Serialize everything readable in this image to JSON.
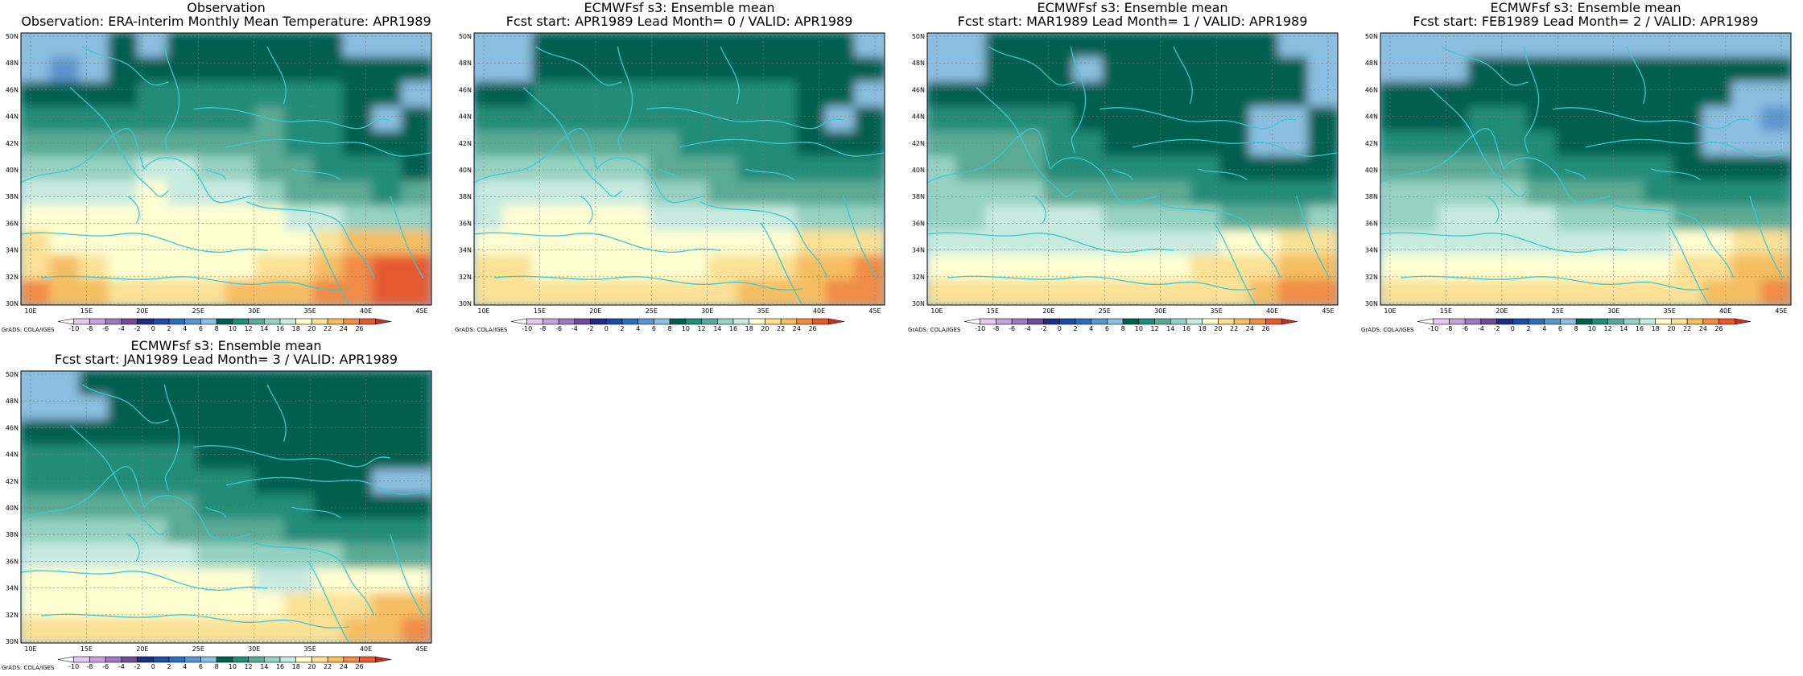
{
  "panels": [
    {
      "id": "obs",
      "title1": "Observation",
      "title2": "Observation: ERA-interim Monthly Mean Temperature: APR1989",
      "field": [
        [
          6,
          6,
          7,
          8,
          7,
          8,
          8,
          9,
          9,
          8,
          8,
          7,
          7,
          6
        ],
        [
          6,
          5,
          7,
          8,
          8,
          9,
          9,
          9,
          9,
          9,
          9,
          9,
          8,
          8
        ],
        [
          8,
          8,
          9,
          9,
          10,
          10,
          10,
          10,
          10,
          10,
          10,
          9,
          8,
          7
        ],
        [
          10,
          11,
          10,
          10,
          11,
          11,
          11,
          11,
          12,
          11,
          10,
          9,
          7,
          8
        ],
        [
          12,
          12,
          12,
          13,
          13,
          13,
          12,
          12,
          12,
          11,
          11,
          9,
          9,
          8
        ],
        [
          14,
          14,
          14,
          15,
          16,
          17,
          15,
          15,
          13,
          12,
          11,
          10,
          10,
          9
        ],
        [
          16,
          16,
          16,
          17,
          18,
          17,
          16,
          16,
          14,
          13,
          12,
          12,
          11,
          12
        ],
        [
          18,
          18,
          18,
          18,
          18,
          18,
          18,
          18,
          18,
          17,
          16,
          15,
          14,
          14
        ],
        [
          20,
          19,
          19,
          18,
          18,
          18,
          18,
          18,
          18,
          19,
          20,
          22,
          22,
          23
        ],
        [
          21,
          22,
          20,
          19,
          18,
          18,
          18,
          19,
          20,
          21,
          22,
          24,
          26,
          27
        ],
        [
          24,
          23,
          22,
          21,
          21,
          20,
          21,
          22,
          22,
          23,
          24,
          25,
          27,
          28
        ]
      ]
    },
    {
      "id": "lead0",
      "title1": "ECMWFsf s3: Ensemble mean",
      "title2": "Fcst start: APR1989  Lead Month= 0 / VALID: APR1989",
      "field": [
        [
          7,
          7,
          8,
          8,
          8,
          9,
          9,
          9,
          9,
          9,
          8,
          8,
          8,
          7
        ],
        [
          6,
          7,
          8,
          8,
          9,
          9,
          9,
          9,
          9,
          9,
          9,
          9,
          8,
          8
        ],
        [
          9,
          9,
          10,
          10,
          10,
          10,
          10,
          10,
          10,
          10,
          10,
          9,
          8,
          7
        ],
        [
          10,
          10,
          11,
          11,
          11,
          11,
          10,
          10,
          10,
          10,
          10,
          8,
          7,
          8
        ],
        [
          12,
          12,
          12,
          12,
          12,
          13,
          12,
          11,
          10,
          10,
          10,
          9,
          9,
          9
        ],
        [
          14,
          14,
          14,
          14,
          14,
          14,
          13,
          13,
          12,
          11,
          11,
          10,
          10,
          10
        ],
        [
          16,
          16,
          16,
          16,
          16,
          16,
          15,
          14,
          13,
          13,
          12,
          12,
          12,
          12
        ],
        [
          17,
          18,
          18,
          18,
          18,
          18,
          17,
          16,
          16,
          16,
          16,
          15,
          14,
          15
        ],
        [
          19,
          19,
          18,
          18,
          18,
          18,
          18,
          18,
          18,
          18,
          19,
          20,
          21,
          21
        ],
        [
          20,
          20,
          19,
          19,
          19,
          19,
          19,
          19,
          20,
          21,
          21,
          22,
          23,
          24
        ],
        [
          21,
          21,
          21,
          21,
          21,
          21,
          21,
          21,
          21,
          22,
          22,
          23,
          24,
          25
        ]
      ]
    },
    {
      "id": "lead1",
      "title1": "ECMWFsf s3: Ensemble mean",
      "title2": "Fcst start: MAR1989  Lead Month= 1 / VALID: APR1989",
      "field": [
        [
          7,
          7,
          8,
          8,
          8,
          8,
          8,
          8,
          8,
          8,
          8,
          8,
          7,
          6
        ],
        [
          6,
          7,
          8,
          9,
          8,
          7,
          8,
          8,
          8,
          8,
          8,
          8,
          8,
          7
        ],
        [
          9,
          9,
          9,
          9,
          9,
          8,
          8,
          8,
          8,
          8,
          8,
          9,
          8,
          7
        ],
        [
          10,
          10,
          11,
          11,
          10,
          9,
          8,
          8,
          8,
          8,
          8,
          7,
          6,
          8
        ],
        [
          12,
          12,
          12,
          12,
          11,
          10,
          9,
          9,
          9,
          9,
          8,
          7,
          7,
          8
        ],
        [
          14,
          13,
          13,
          12,
          11,
          11,
          10,
          10,
          10,
          10,
          9,
          9,
          9,
          9
        ],
        [
          14,
          14,
          14,
          14,
          13,
          12,
          12,
          12,
          12,
          11,
          10,
          10,
          11,
          11
        ],
        [
          15,
          15,
          16,
          16,
          16,
          16,
          15,
          14,
          14,
          14,
          13,
          13,
          13,
          14
        ],
        [
          17,
          17,
          17,
          17,
          17,
          17,
          17,
          17,
          17,
          17,
          18,
          19,
          20,
          20
        ],
        [
          19,
          19,
          18,
          18,
          18,
          18,
          18,
          18,
          19,
          20,
          20,
          21,
          22,
          23
        ],
        [
          20,
          20,
          20,
          20,
          20,
          20,
          20,
          20,
          20,
          21,
          21,
          22,
          24,
          25
        ]
      ]
    },
    {
      "id": "lead2",
      "title1": "ECMWFsf s3: Ensemble mean",
      "title2": "Fcst start: FEB1989  Lead Month= 2 / VALID: APR1989",
      "field": [
        [
          7,
          6,
          7,
          7,
          7,
          7,
          7,
          7,
          7,
          7,
          7,
          7,
          7,
          7
        ],
        [
          6,
          6,
          7,
          8,
          8,
          8,
          8,
          8,
          8,
          8,
          8,
          8,
          8,
          8
        ],
        [
          8,
          8,
          8,
          8,
          8,
          8,
          8,
          8,
          8,
          8,
          8,
          8,
          7,
          6
        ],
        [
          9,
          9,
          9,
          10,
          10,
          9,
          8,
          8,
          8,
          8,
          8,
          7,
          6,
          5
        ],
        [
          11,
          11,
          11,
          11,
          11,
          10,
          9,
          9,
          9,
          9,
          8,
          7,
          6,
          6
        ],
        [
          12,
          12,
          12,
          12,
          12,
          11,
          10,
          10,
          10,
          10,
          9,
          8,
          8,
          8
        ],
        [
          14,
          14,
          14,
          14,
          14,
          13,
          12,
          12,
          12,
          11,
          10,
          10,
          10,
          10
        ],
        [
          15,
          15,
          16,
          16,
          16,
          16,
          15,
          14,
          14,
          14,
          13,
          13,
          13,
          13
        ],
        [
          17,
          17,
          17,
          17,
          17,
          17,
          17,
          17,
          17,
          17,
          18,
          19,
          20,
          20
        ],
        [
          18,
          18,
          18,
          18,
          18,
          18,
          18,
          18,
          19,
          19,
          20,
          21,
          22,
          23
        ],
        [
          20,
          20,
          20,
          20,
          20,
          20,
          20,
          20,
          20,
          21,
          21,
          22,
          23,
          25
        ]
      ]
    },
    {
      "id": "lead3",
      "title1": "ECMWFsf s3: Ensemble mean",
      "title2": "Fcst start: JAN1989  Lead Month= 3 / VALID: APR1989",
      "field": [
        [
          7,
          7,
          8,
          8,
          8,
          8,
          8,
          8,
          8,
          8,
          8,
          8,
          8,
          8
        ],
        [
          6,
          6,
          7,
          8,
          8,
          9,
          8,
          8,
          8,
          8,
          8,
          8,
          8,
          8
        ],
        [
          8,
          8,
          8,
          9,
          9,
          9,
          9,
          8,
          8,
          8,
          8,
          8,
          8,
          8
        ],
        [
          10,
          10,
          10,
          10,
          10,
          10,
          9,
          9,
          8,
          8,
          8,
          8,
          8,
          8
        ],
        [
          11,
          11,
          11,
          11,
          11,
          11,
          10,
          10,
          9,
          9,
          9,
          8,
          7,
          6
        ],
        [
          12,
          12,
          12,
          12,
          12,
          12,
          11,
          11,
          10,
          10,
          9,
          8,
          8,
          8
        ],
        [
          14,
          14,
          14,
          14,
          14,
          13,
          13,
          12,
          12,
          11,
          11,
          10,
          10,
          10
        ],
        [
          16,
          16,
          16,
          16,
          16,
          16,
          15,
          15,
          14,
          14,
          14,
          13,
          13,
          13
        ],
        [
          18,
          18,
          18,
          18,
          18,
          18,
          18,
          18,
          17,
          17,
          18,
          18,
          19,
          19
        ],
        [
          19,
          19,
          19,
          19,
          19,
          19,
          19,
          19,
          19,
          20,
          20,
          21,
          22,
          23
        ],
        [
          20,
          20,
          20,
          20,
          20,
          20,
          20,
          20,
          20,
          20,
          21,
          22,
          23,
          24
        ]
      ]
    }
  ],
  "lon_labels": [
    "10E",
    "15E",
    "20E",
    "25E",
    "30E",
    "35E",
    "40E",
    "45E"
  ],
  "lat_labels": [
    "30N",
    "32N",
    "34N",
    "36N",
    "38N",
    "40N",
    "42N",
    "44N",
    "46N",
    "48N",
    "50N"
  ],
  "colorbar": {
    "labels": [
      "-10",
      "-8",
      "-6",
      "-4",
      "-2",
      "0",
      "2",
      "4",
      "6",
      "8",
      "10",
      "12",
      "14",
      "16",
      "18",
      "20",
      "22",
      "24",
      "26"
    ],
    "colors": [
      "#ffffff",
      "#e6c8f0",
      "#c8a0dc",
      "#a078be",
      "#6e4c96",
      "#1e2d82",
      "#1e4ba5",
      "#2d6eb9",
      "#5a96cd",
      "#8cbee1",
      "#005f50",
      "#238c78",
      "#5aaa96",
      "#96d2c3",
      "#c8ebe1",
      "#ffffd2",
      "#fae196",
      "#f5be64",
      "#f08c46",
      "#e65a32",
      "#d2281e"
    ],
    "source_label": "GrADS: COLA/IGES"
  },
  "colors": {
    "coastline": "#3cc8d2",
    "grid": "#7a7a7a",
    "frame": "#000000"
  }
}
